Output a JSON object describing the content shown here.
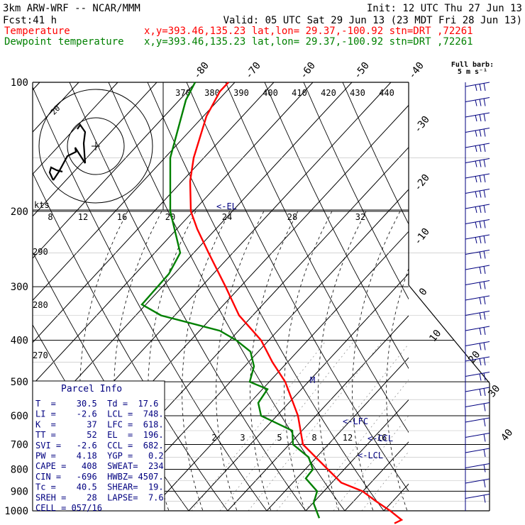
{
  "header": {
    "model": "3km ARW-WRF -- NCAR/MMM",
    "init": "Init: 12 UTC Thu 27 Jun 13",
    "fcst_label": "Fcst:",
    "fcst_value": "41 h",
    "valid": "Valid: 05 UTC Sat 29 Jun 13 (23 MDT Fri 28 Jun 13)",
    "temp_label": "Temperature",
    "dew_label": "Dewpoint temperature",
    "temp_loc": "x,y=393.46,135.23   lat,lon= 29.37,-100.92   stn=DRT ,72261",
    "dew_loc": "x,y=393.46,135.23   lat,lon= 29.37,-100.92   stn=DRT ,72261"
  },
  "colors": {
    "temperature": "#ff0000",
    "dewpoint": "#008000",
    "annotation": "#000080",
    "grid": "#000000"
  },
  "barb_header": {
    "line1": "Full barb:",
    "line2": "5 m s⁻¹"
  },
  "hodograph": {
    "kts": "kts",
    "ring_label": "20"
  },
  "labels": {
    "el": "<-EL",
    "lfc": "<-LFC",
    "ccl": "<-CCL",
    "lcl": "<-LCL",
    "m": "M"
  },
  "parcel_info": {
    "title": "Parcel Info",
    "rows": [
      "T  =    30.5  Td =  17.6",
      "LI =    -2.6  LCL =  748.",
      "K  =      37  LFC =  618.",
      "TT =      52  EL  =  196.",
      "SVI =   -2.6  CCL =  682.",
      "PW =    4.18  YGP =   0.2",
      "CAPE =   408  SWEAT=  234",
      "CIN =   -696  HWBZ= 4507.",
      "Tc =    40.5  SHEAR=  19.",
      "SREH =    28  LAPSE=  7.6",
      "CELL = 057/16"
    ]
  },
  "chart_data": {
    "type": "line",
    "title": "",
    "xlabel": "",
    "ylabel": "",
    "y_axis_scale": "log pressure",
    "pressure_levels": [
      100,
      200,
      300,
      400,
      500,
      600,
      700,
      800,
      900,
      1000
    ],
    "temperature_ticks_top": [
      -80,
      -70,
      -60,
      -50,
      -40
    ],
    "temperature_ticks_right": [
      -30,
      -20,
      -10,
      0,
      10,
      20,
      30,
      40
    ],
    "theta_labels": [
      370,
      380,
      390,
      400,
      410,
      420,
      430,
      440
    ],
    "theta_labels_left": [
      290,
      280,
      270
    ],
    "mixing_ratio_labels": [
      2,
      3,
      5,
      8,
      12,
      16,
      20,
      24,
      28,
      32
    ],
    "hodograph_speed_labels": [
      8,
      12,
      16,
      20,
      24,
      28,
      32
    ],
    "series": [
      {
        "name": "Temperature",
        "points": [
          [
            100,
            322
          ],
          [
            105,
            310
          ],
          [
            120,
            291
          ],
          [
            150,
            273
          ],
          [
            170,
            268
          ],
          [
            200,
            269
          ],
          [
            220,
            278
          ],
          [
            250,
            294
          ],
          [
            300,
            318
          ],
          [
            350,
            337
          ],
          [
            400,
            368
          ],
          [
            450,
            384
          ],
          [
            500,
            402
          ],
          [
            600,
            420
          ],
          [
            700,
            427
          ],
          [
            800,
            462
          ],
          [
            860,
            481
          ],
          [
            900,
            511
          ],
          [
            950,
            530
          ],
          [
            1000,
            550
          ],
          [
            1050,
            566
          ],
          [
            1070,
            556
          ]
        ]
      },
      {
        "name": "Dewpoint temperature",
        "points": [
          [
            100,
            275
          ],
          [
            110,
            262
          ],
          [
            150,
            240
          ],
          [
            200,
            240
          ],
          [
            250,
            254
          ],
          [
            280,
            238
          ],
          [
            330,
            200
          ],
          [
            350,
            227
          ],
          [
            380,
            310
          ],
          [
            400,
            333
          ],
          [
            425,
            353
          ],
          [
            460,
            358
          ],
          [
            500,
            352
          ],
          [
            520,
            377
          ],
          [
            560,
            364
          ],
          [
            600,
            368
          ],
          [
            650,
            412
          ],
          [
            700,
            413
          ],
          [
            750,
            435
          ],
          [
            800,
            441
          ],
          [
            840,
            431
          ],
          [
            900,
            447
          ],
          [
            960,
            442
          ],
          [
            1040,
            450
          ]
        ]
      }
    ]
  }
}
